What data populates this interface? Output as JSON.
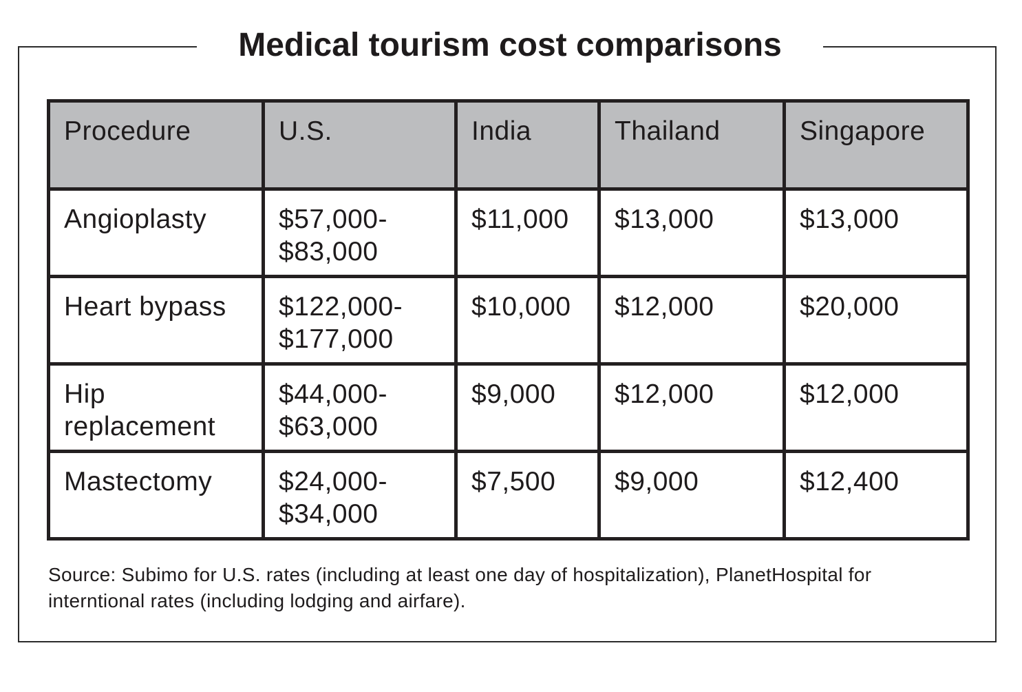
{
  "title": "Medical tourism cost comparisons",
  "table": {
    "headers": [
      "Procedure",
      "U.S.",
      "India",
      "Thailand",
      "Singapore"
    ],
    "rows": [
      {
        "procedure": "Angioplasty",
        "us_line1": "$57,000-",
        "us_line2": "$83,000",
        "india": "$11,000",
        "thailand": "$13,000",
        "singapore": "$13,000"
      },
      {
        "procedure": "Heart bypass",
        "us_line1": "$122,000-",
        "us_line2": "$177,000",
        "india": "$10,000",
        "thailand": "$12,000",
        "singapore": "$20,000"
      },
      {
        "procedure_line1": "Hip",
        "procedure_line2": "replacement",
        "us_line1": "$44,000-",
        "us_line2": "$63,000",
        "india": "$9,000",
        "thailand": "$12,000",
        "singapore": "$12,000"
      },
      {
        "procedure": "Mastectomy",
        "us_line1": "$24,000-",
        "us_line2": "$34,000",
        "india": "$7,500",
        "thailand": "$9,000",
        "singapore": "$12,400"
      }
    ]
  },
  "source": "Source: Subimo for U.S. rates (including at least one day of hospitalization), PlanetHospital for interntional rates (including lodging and airfare).",
  "colors": {
    "header_bg": "#bcbdbf",
    "border": "#231f20",
    "text": "#1e1b1c"
  }
}
